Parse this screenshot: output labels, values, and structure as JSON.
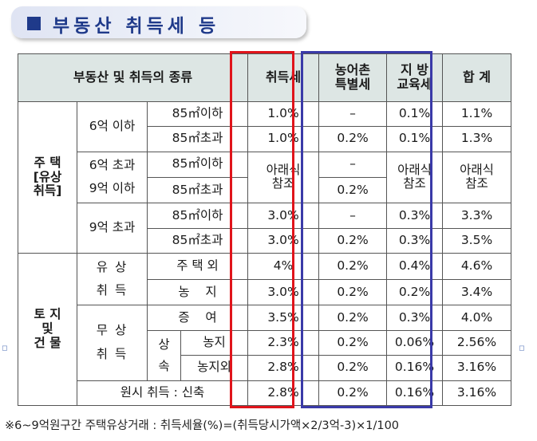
{
  "title": "부동산 취득세 등",
  "headers": {
    "category": "부동산 및 취득의 종류",
    "acq_tax": "취득세",
    "rural_tax": "농어촌\n특별세",
    "edu_tax": "지  방\n교육세",
    "total": "합  계"
  },
  "house": {
    "label": "주 택\n[유상\n취득]",
    "tier1": "6억 이하",
    "tier2": "6억 초과\n9억 이하",
    "tier3": "9억 초과",
    "size_under": "85㎡이하",
    "size_over": "85㎡초과"
  },
  "house_rows": [
    {
      "acq": "1.0%",
      "rural": "–",
      "edu": "0.1%",
      "total": "1.1%"
    },
    {
      "acq": "1.0%",
      "rural": "0.2%",
      "edu": "0.1%",
      "total": "1.3%"
    },
    {
      "acq": "아래식\n참조",
      "rural_a": "–",
      "rural_b": "0.2%",
      "edu": "아래식\n참조",
      "total": "아래식\n참조"
    },
    {
      "acq": "3.0%",
      "rural": "–",
      "edu": "0.3%",
      "total": "3.3%"
    },
    {
      "acq": "3.0%",
      "rural": "0.2%",
      "edu": "0.3%",
      "total": "3.5%"
    }
  ],
  "land": {
    "label": "토 지\n및\n건 물",
    "paid": "유 상\n취 득",
    "paid_house_other": "주 택 외",
    "paid_farmland": "농    지",
    "free": "무 상\n취 득",
    "gift": "증    여",
    "inherit": "상\n속",
    "inherit_farm": "농지",
    "inherit_other": "농지외",
    "original": "원시 취득 : 신축"
  },
  "land_rows": [
    {
      "acq": "4%",
      "rural": "0.2%",
      "edu": "0.4%",
      "total": "4.6%"
    },
    {
      "acq": "3.0%",
      "rural": "0.2%",
      "edu": "0.2%",
      "total": "3.4%"
    },
    {
      "acq": "3.5%",
      "rural": "0.2%",
      "edu": "0.3%",
      "total": "4.0%"
    },
    {
      "acq": "2.3%",
      "rural": "0.2%",
      "edu": "0.06%",
      "total": "2.56%"
    },
    {
      "acq": "2.8%",
      "rural": "0.2%",
      "edu": "0.16%",
      "total": "3.16%"
    },
    {
      "acq": "2.8%",
      "rural": "0.2%",
      "edu": "0.16%",
      "total": "3.16%"
    }
  ],
  "footnote": "※6~9억원구간 주택유상거래 : 취득세율(%)=(취득당시가액×2/3억-3)×1/100",
  "colors": {
    "banner_text": "#1f3a8a",
    "header_bg": "#dde6e4",
    "red_box": "#e0141b",
    "blue_box": "#3a3aa8"
  }
}
